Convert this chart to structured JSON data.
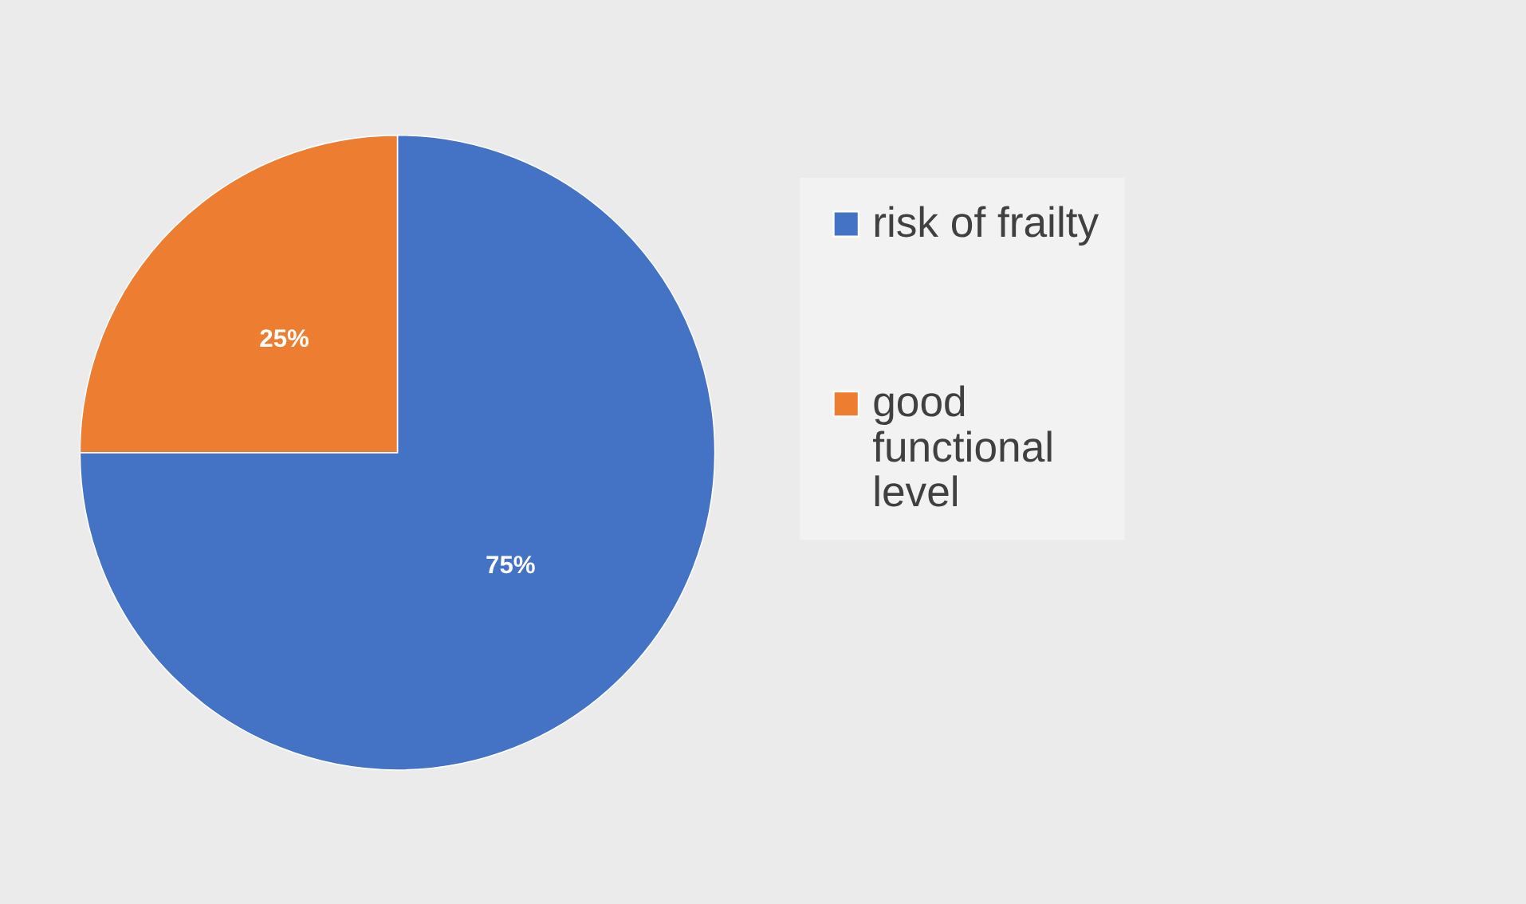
{
  "chart_data": {
    "type": "pie",
    "categories": [
      "risk of frailty",
      "good functional level"
    ],
    "values": [
      75,
      25
    ],
    "colors": [
      "#4472c4",
      "#ed7d31"
    ],
    "value_labels": [
      "75%",
      "25%"
    ],
    "legend": "right"
  }
}
